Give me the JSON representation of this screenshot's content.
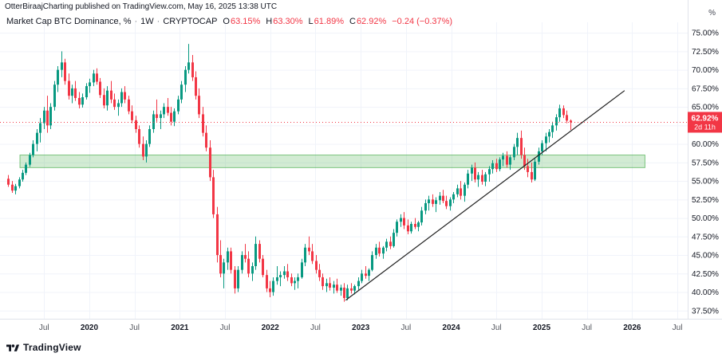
{
  "header": {
    "attribution": "OtterBiraajCharting published on TradingView.com, May 16, 2025 13:38 UTC"
  },
  "legend": {
    "title": "Market Cap BTC Dominance, %",
    "separator": "·",
    "interval": "1W",
    "exchange": "CRYPTOCAP",
    "ohlc": {
      "o_label": "O",
      "o": "63.15%",
      "h_label": "H",
      "h": "63.30%",
      "l_label": "L",
      "l": "61.89%",
      "c_label": "C",
      "c": "62.92%"
    },
    "change": "−0.24 (−0.37%)"
  },
  "price_scale": {
    "unit": "%",
    "labels": [
      "75.00%",
      "72.50%",
      "70.00%",
      "67.50%",
      "65.00%",
      "62.50%",
      "60.00%",
      "57.50%",
      "55.00%",
      "52.50%",
      "50.00%",
      "47.50%",
      "45.00%",
      "42.50%",
      "40.00%",
      "37.50%"
    ],
    "badge": {
      "price": "62.92%",
      "countdown": "2d 11h",
      "color": "#f23645"
    }
  },
  "footer": {
    "brand": "TradingView"
  },
  "chart_data": {
    "type": "candlestick",
    "title": "Market Cap BTC Dominance, %",
    "interval": "1W",
    "ylim": [
      36.4,
      76.2
    ],
    "y_tick_step": 2.5,
    "grid": true,
    "up_color": "#089981",
    "down_color": "#f23645",
    "months_span_data": 75,
    "x_ticks": [
      {
        "label": "Jul",
        "m": 5
      },
      {
        "label": "2020",
        "m": 11,
        "year": true
      },
      {
        "label": "Jul",
        "m": 17
      },
      {
        "label": "2021",
        "m": 23,
        "year": true
      },
      {
        "label": "Jul",
        "m": 29
      },
      {
        "label": "2022",
        "m": 35,
        "year": true
      },
      {
        "label": "Jul",
        "m": 41
      },
      {
        "label": "2023",
        "m": 47,
        "year": true
      },
      {
        "label": "Jul",
        "m": 53
      },
      {
        "label": "2024",
        "m": 59,
        "year": true
      },
      {
        "label": "Jul",
        "m": 65
      },
      {
        "label": "2025",
        "m": 71,
        "year": true
      },
      {
        "label": "Jul",
        "m": 77
      },
      {
        "label": "2026",
        "m": 83,
        "year": true
      },
      {
        "label": "Jul",
        "m": 89
      }
    ],
    "price_line": {
      "value": 62.92,
      "color": "#f23645",
      "style": "dotted"
    },
    "support_zone": {
      "value_from": 56.8,
      "value_to": 58.5,
      "month_from": 1.8,
      "month_to": 84.7,
      "fill": "#4caf50",
      "fill_opacity": 0.25,
      "stroke": "#4caf50"
    },
    "trendline": {
      "month_from": 45.0,
      "value_from": 38.9,
      "month_to": 82.0,
      "value_to": 67.2,
      "color": "#202020"
    },
    "candles": [
      [
        55.3,
        55.8,
        54.2,
        54.5
      ],
      [
        54.5,
        55.0,
        53.4,
        53.7
      ],
      [
        53.7,
        54.6,
        53.2,
        54.3
      ],
      [
        54.3,
        55.5,
        54.0,
        55.2
      ],
      [
        55.2,
        56.5,
        54.9,
        56.1
      ],
      [
        56.1,
        57.5,
        55.8,
        57.2
      ],
      [
        57.2,
        58.8,
        56.9,
        58.5
      ],
      [
        58.5,
        60.5,
        58.2,
        60.0
      ],
      [
        60.0,
        62.0,
        59.0,
        61.5
      ],
      [
        61.5,
        63.5,
        60.2,
        62.8
      ],
      [
        62.8,
        65.0,
        62.0,
        64.5
      ],
      [
        64.5,
        66.5,
        61.5,
        62.5
      ],
      [
        62.5,
        65.5,
        62.0,
        65.0
      ],
      [
        65.0,
        68.5,
        64.5,
        68.0
      ],
      [
        68.0,
        70.5,
        67.0,
        70.0
      ],
      [
        70.0,
        72.5,
        69.0,
        71.0
      ],
      [
        71.0,
        71.5,
        68.0,
        68.5
      ],
      [
        68.5,
        69.5,
        66.0,
        66.5
      ],
      [
        66.5,
        68.0,
        65.5,
        67.5
      ],
      [
        67.5,
        68.5,
        65.8,
        66.2
      ],
      [
        66.2,
        67.0,
        64.8,
        65.3
      ],
      [
        65.3,
        66.8,
        64.9,
        66.3
      ],
      [
        66.3,
        68.2,
        66.0,
        67.8
      ],
      [
        67.8,
        68.8,
        66.9,
        68.3
      ],
      [
        68.3,
        70.0,
        67.8,
        69.5
      ],
      [
        69.5,
        70.2,
        68.0,
        68.4
      ],
      [
        68.4,
        68.9,
        66.2,
        66.6
      ],
      [
        66.6,
        67.5,
        64.8,
        65.2
      ],
      [
        65.2,
        67.8,
        64.5,
        67.2
      ],
      [
        67.2,
        68.5,
        65.5,
        66.0
      ],
      [
        66.0,
        66.8,
        64.6,
        65.0
      ],
      [
        65.0,
        66.0,
        63.8,
        65.5
      ],
      [
        65.5,
        67.5,
        65.0,
        67.0
      ],
      [
        67.0,
        67.8,
        65.5,
        66.0
      ],
      [
        66.0,
        66.5,
        64.0,
        64.4
      ],
      [
        64.4,
        65.2,
        62.8,
        63.2
      ],
      [
        63.2,
        63.8,
        61.5,
        62.0
      ],
      [
        62.0,
        62.5,
        59.5,
        60.0
      ],
      [
        60.0,
        61.0,
        57.8,
        58.3
      ],
      [
        58.3,
        60.5,
        57.5,
        60.0
      ],
      [
        60.0,
        62.5,
        59.6,
        62.0
      ],
      [
        62.0,
        64.5,
        61.5,
        64.0
      ],
      [
        64.0,
        66.0,
        63.0,
        63.5
      ],
      [
        63.5,
        64.5,
        62.0,
        64.0
      ],
      [
        64.0,
        65.5,
        63.5,
        65.0
      ],
      [
        65.0,
        66.2,
        63.8,
        64.2
      ],
      [
        64.2,
        65.0,
        62.5,
        63.0
      ],
      [
        63.0,
        64.8,
        62.4,
        64.4
      ],
      [
        64.4,
        66.5,
        64.0,
        66.0
      ],
      [
        66.0,
        68.5,
        65.5,
        68.0
      ],
      [
        68.0,
        70.5,
        67.0,
        70.0
      ],
      [
        70.0,
        73.5,
        69.5,
        71.0
      ],
      [
        71.0,
        72.0,
        68.5,
        69.0
      ],
      [
        69.0,
        69.8,
        66.0,
        66.5
      ],
      [
        66.5,
        67.5,
        63.5,
        64.0
      ],
      [
        64.0,
        65.0,
        61.0,
        61.5
      ],
      [
        61.5,
        62.5,
        59.0,
        59.5
      ],
      [
        59.5,
        60.5,
        55.0,
        55.5
      ],
      [
        55.5,
        56.5,
        50.0,
        50.5
      ],
      [
        50.5,
        51.5,
        44.0,
        45.0
      ],
      [
        45.0,
        47.0,
        42.0,
        42.5
      ],
      [
        42.5,
        44.5,
        40.5,
        44.0
      ],
      [
        44.0,
        46.0,
        43.0,
        45.5
      ],
      [
        45.5,
        46.0,
        42.5,
        43.0
      ],
      [
        43.0,
        43.5,
        39.8,
        40.5
      ],
      [
        40.5,
        43.5,
        40.0,
        43.0
      ],
      [
        43.0,
        45.5,
        42.5,
        45.0
      ],
      [
        45.0,
        46.5,
        44.0,
        44.5
      ],
      [
        44.5,
        45.5,
        42.0,
        42.5
      ],
      [
        42.5,
        44.0,
        41.5,
        43.5
      ],
      [
        43.5,
        47.5,
        43.0,
        46.5
      ],
      [
        46.5,
        47.0,
        44.0,
        44.5
      ],
      [
        44.5,
        45.0,
        42.0,
        42.3
      ],
      [
        42.3,
        43.0,
        40.0,
        40.5
      ],
      [
        40.5,
        41.5,
        39.3,
        40.0
      ],
      [
        40.0,
        42.0,
        39.5,
        41.5
      ],
      [
        41.5,
        43.5,
        41.0,
        42.0
      ],
      [
        42.0,
        42.8,
        40.8,
        42.3
      ],
      [
        42.3,
        43.5,
        41.8,
        42.8
      ],
      [
        42.8,
        43.8,
        41.5,
        42.0
      ],
      [
        42.0,
        42.5,
        40.8,
        41.2
      ],
      [
        41.2,
        42.0,
        40.3,
        41.5
      ],
      [
        41.5,
        42.5,
        40.5,
        42.0
      ],
      [
        42.0,
        44.5,
        41.8,
        44.0
      ],
      [
        44.0,
        46.5,
        43.5,
        46.0
      ],
      [
        46.0,
        47.5,
        45.0,
        45.5
      ],
      [
        45.5,
        46.5,
        43.8,
        44.2
      ],
      [
        44.2,
        45.0,
        42.5,
        43.0
      ],
      [
        43.0,
        43.8,
        41.5,
        42.0
      ],
      [
        42.0,
        42.5,
        40.3,
        40.8
      ],
      [
        40.8,
        41.8,
        40.0,
        41.2
      ],
      [
        41.2,
        42.0,
        40.2,
        40.6
      ],
      [
        40.6,
        41.5,
        39.8,
        41.0
      ],
      [
        41.0,
        41.8,
        39.9,
        40.2
      ],
      [
        40.2,
        41.0,
        39.5,
        40.6
      ],
      [
        40.6,
        41.2,
        38.7,
        39.2
      ],
      [
        39.2,
        41.0,
        38.9,
        40.5
      ],
      [
        40.5,
        41.2,
        39.8,
        40.2
      ],
      [
        40.2,
        41.0,
        39.7,
        40.8
      ],
      [
        40.8,
        42.0,
        40.3,
        41.5
      ],
      [
        41.5,
        43.0,
        41.2,
        42.5
      ],
      [
        42.5,
        43.5,
        41.8,
        42.2
      ],
      [
        42.2,
        43.2,
        41.5,
        43.0
      ],
      [
        43.0,
        45.5,
        42.8,
        45.0
      ],
      [
        45.0,
        46.5,
        44.5,
        46.0
      ],
      [
        46.0,
        46.8,
        44.8,
        45.2
      ],
      [
        45.2,
        46.2,
        44.5,
        46.0
      ],
      [
        46.0,
        47.2,
        45.5,
        46.8
      ],
      [
        46.8,
        47.5,
        45.8,
        46.2
      ],
      [
        46.2,
        48.5,
        46.0,
        48.0
      ],
      [
        48.0,
        49.8,
        47.5,
        49.5
      ],
      [
        49.5,
        50.5,
        48.8,
        50.0
      ],
      [
        50.0,
        50.8,
        48.5,
        49.0
      ],
      [
        49.0,
        49.8,
        47.8,
        48.2
      ],
      [
        48.2,
        49.5,
        47.9,
        49.2
      ],
      [
        49.2,
        50.0,
        48.5,
        48.8
      ],
      [
        48.8,
        49.6,
        48.2,
        49.4
      ],
      [
        49.4,
        51.5,
        49.0,
        51.0
      ],
      [
        51.0,
        52.5,
        50.5,
        52.0
      ],
      [
        52.0,
        53.0,
        51.0,
        52.5
      ],
      [
        52.5,
        53.2,
        51.5,
        51.9
      ],
      [
        51.9,
        52.8,
        50.8,
        52.4
      ],
      [
        52.4,
        53.5,
        51.8,
        53.0
      ],
      [
        53.0,
        53.8,
        52.0,
        52.3
      ],
      [
        52.3,
        53.0,
        51.2,
        51.6
      ],
      [
        51.6,
        52.8,
        51.0,
        52.5
      ],
      [
        52.5,
        53.5,
        52.0,
        53.2
      ],
      [
        53.2,
        54.5,
        52.8,
        54.0
      ],
      [
        54.0,
        55.0,
        52.5,
        53.0
      ],
      [
        53.0,
        54.8,
        52.2,
        54.5
      ],
      [
        54.5,
        56.5,
        54.0,
        56.0
      ],
      [
        56.0,
        57.2,
        55.0,
        56.8
      ],
      [
        56.8,
        57.5,
        54.8,
        55.2
      ],
      [
        55.2,
        56.2,
        54.2,
        55.8
      ],
      [
        55.8,
        56.5,
        54.5,
        54.9
      ],
      [
        54.9,
        56.2,
        54.3,
        55.9
      ],
      [
        55.9,
        57.0,
        54.9,
        56.6
      ],
      [
        56.6,
        57.8,
        56.0,
        57.4
      ],
      [
        57.4,
        58.0,
        56.2,
        56.6
      ],
      [
        56.6,
        58.2,
        56.3,
        57.9
      ],
      [
        57.9,
        58.8,
        57.0,
        58.4
      ],
      [
        58.4,
        59.0,
        56.8,
        57.2
      ],
      [
        57.2,
        58.5,
        56.5,
        58.2
      ],
      [
        58.2,
        60.0,
        57.8,
        59.6
      ],
      [
        59.6,
        61.5,
        58.5,
        60.8
      ],
      [
        60.8,
        61.8,
        58.0,
        58.5
      ],
      [
        58.5,
        59.5,
        56.5,
        57.0
      ],
      [
        57.0,
        58.0,
        55.5,
        56.2
      ],
      [
        56.2,
        57.5,
        54.8,
        55.2
      ],
      [
        55.2,
        58.0,
        55.0,
        57.6
      ],
      [
        57.6,
        59.5,
        57.2,
        59.0
      ],
      [
        59.0,
        60.5,
        58.5,
        60.1
      ],
      [
        60.1,
        61.5,
        59.0,
        61.0
      ],
      [
        61.0,
        62.0,
        60.2,
        61.6
      ],
      [
        61.6,
        63.0,
        60.8,
        62.5
      ],
      [
        62.5,
        64.0,
        61.8,
        63.6
      ],
      [
        63.6,
        65.3,
        63.0,
        64.8
      ],
      [
        64.8,
        65.2,
        63.5,
        63.9
      ],
      [
        63.9,
        64.5,
        62.8,
        63.15
      ],
      [
        63.15,
        63.3,
        61.89,
        62.92
      ]
    ]
  }
}
